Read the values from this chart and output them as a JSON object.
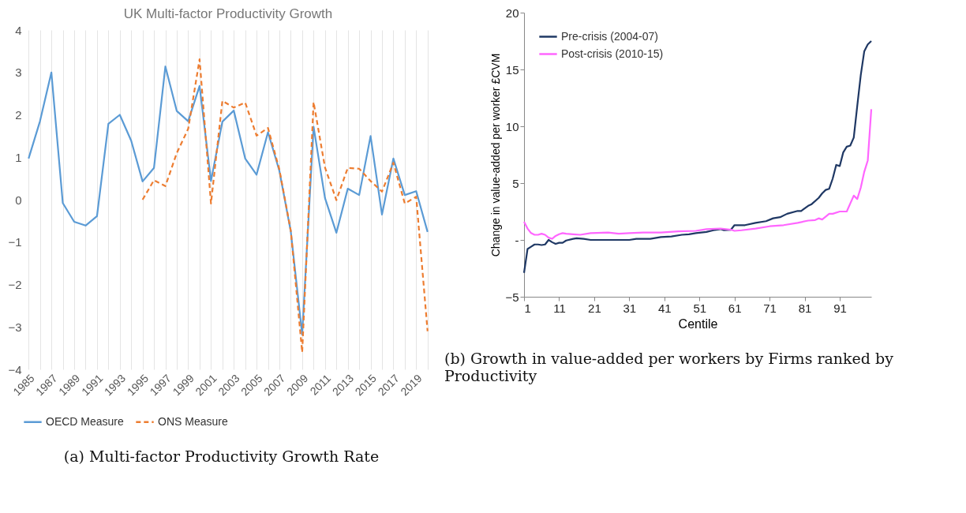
{
  "chart_data": [
    {
      "type": "line",
      "title": "UK Multi-factor Productivity Growth",
      "categories": [
        "1985",
        null,
        "1987",
        null,
        "1989",
        null,
        "1991",
        null,
        "1993",
        null,
        "1995",
        null,
        "1997",
        null,
        "1999",
        null,
        "2001",
        null,
        "2003",
        null,
        "2005",
        null,
        "2007",
        null,
        "2009",
        null,
        "2011",
        null,
        "2013",
        null,
        "2015",
        null,
        "2017",
        null,
        "2019",
        null
      ],
      "series": [
        {
          "name": "OECD Measure",
          "color": "#5b9bd5",
          "values": [
            0.97,
            1.85,
            3.0,
            -0.08,
            -0.52,
            -0.61,
            -0.39,
            1.79,
            2.0,
            1.39,
            0.43,
            0.75,
            3.14,
            2.09,
            1.85,
            2.68,
            0.44,
            1.84,
            2.1,
            0.97,
            0.59,
            1.59,
            0.68,
            -0.75,
            -3.18,
            1.72,
            0.04,
            -0.78,
            0.26,
            0.11,
            1.5,
            -0.35,
            0.97,
            0.11,
            0.2,
            -0.76
          ]
        },
        {
          "name": "ONS Measure",
          "color": "#ed7d31",
          "line_style": "dashed",
          "values": [
            null,
            null,
            null,
            null,
            null,
            null,
            null,
            null,
            null,
            null,
            0,
            0.46,
            0.32,
            1.1,
            1.67,
            3.31,
            -0.09,
            2.33,
            2.17,
            2.29,
            1.51,
            1.69,
            0.71,
            -0.73,
            -3.6,
            2.3,
            0.76,
            -0.01,
            0.75,
            0.73,
            0.44,
            0.19,
            0.87,
            -0.09,
            0.07,
            -3.1
          ]
        }
      ],
      "ylim": [
        -4,
        4
      ],
      "yticks": [
        -4,
        -3,
        -2,
        -1,
        0,
        1,
        2,
        3,
        4
      ],
      "grid": "x",
      "legend": "bottom",
      "annotations": [
        "(a) Multi-factor Productivity Growth Rate"
      ]
    },
    {
      "type": "line",
      "xlabel": "Centile",
      "ylabel": "Change in value-added per worker £CVM",
      "series": [
        {
          "name": "Pre-crisis (2004-07)",
          "color": "#1f3864",
          "x": [
            1,
            2,
            3,
            4,
            5,
            6,
            7,
            8,
            9,
            10,
            11,
            12,
            13,
            15,
            16,
            18,
            20,
            25,
            30,
            31,
            33,
            37,
            40,
            43,
            46,
            48,
            50,
            53,
            55,
            57,
            58,
            60,
            61,
            64,
            67,
            70,
            72,
            74,
            76,
            79,
            80,
            82,
            83,
            85,
            86,
            87,
            88,
            89,
            90,
            91,
            92,
            93,
            94,
            95,
            96,
            97,
            98,
            99,
            100
          ],
          "values": [
            -2.9,
            -0.8,
            -0.6,
            -0.4,
            -0.4,
            -0.45,
            -0.4,
            0.0,
            -0.2,
            -0.35,
            -0.25,
            -0.25,
            -0.05,
            0.1,
            0.15,
            0.1,
            0.0,
            0.0,
            0.0,
            0.0,
            0.1,
            0.1,
            0.25,
            0.3,
            0.45,
            0.5,
            0.6,
            0.7,
            0.85,
            0.95,
            0.85,
            0.9,
            1.3,
            1.3,
            1.5,
            1.65,
            1.9,
            2.0,
            2.3,
            2.55,
            2.55,
            3.0,
            3.15,
            3.7,
            4.1,
            4.4,
            4.5,
            5.4,
            6.6,
            6.5,
            7.7,
            8.2,
            8.3,
            9.0,
            11.8,
            14.5,
            16.6,
            17.2,
            17.5
          ]
        },
        {
          "name": "Post-crisis (2010-15)",
          "color": "#ff66ff",
          "x": [
            1,
            2,
            3,
            4,
            5,
            6,
            7,
            8,
            9,
            10,
            11,
            12,
            13,
            15,
            17,
            20,
            25,
            28,
            31,
            35,
            40,
            45,
            50,
            53,
            57,
            60,
            61,
            63,
            67,
            71,
            75,
            79,
            82,
            84,
            85,
            86,
            88,
            89,
            91,
            93,
            94,
            95,
            96,
            97,
            98,
            99,
            100
          ],
          "values": [
            1.6,
            1.0,
            0.6,
            0.45,
            0.45,
            0.55,
            0.45,
            0.2,
            0.1,
            0.35,
            0.5,
            0.6,
            0.55,
            0.5,
            0.45,
            0.6,
            0.65,
            0.55,
            0.6,
            0.65,
            0.65,
            0.75,
            0.8,
            0.95,
            1.0,
            0.9,
            0.8,
            0.85,
            1.0,
            1.2,
            1.3,
            1.5,
            1.7,
            1.75,
            1.9,
            1.8,
            2.3,
            2.3,
            2.5,
            2.5,
            3.2,
            3.9,
            3.6,
            4.6,
            6.0,
            7.0,
            11.5
          ]
        }
      ],
      "xlim": [
        1,
        100
      ],
      "xticks": [
        1,
        11,
        21,
        31,
        41,
        51,
        61,
        71,
        81,
        91
      ],
      "ylim": [
        -5,
        20
      ],
      "yticks": [
        -5,
        {
          "value": 0,
          "label": "-"
        },
        5,
        10,
        15,
        20
      ],
      "legend": "top left",
      "annotations": [
        "(b) Growth in value-added per workers by Firms ranked by Productivity"
      ]
    }
  ]
}
